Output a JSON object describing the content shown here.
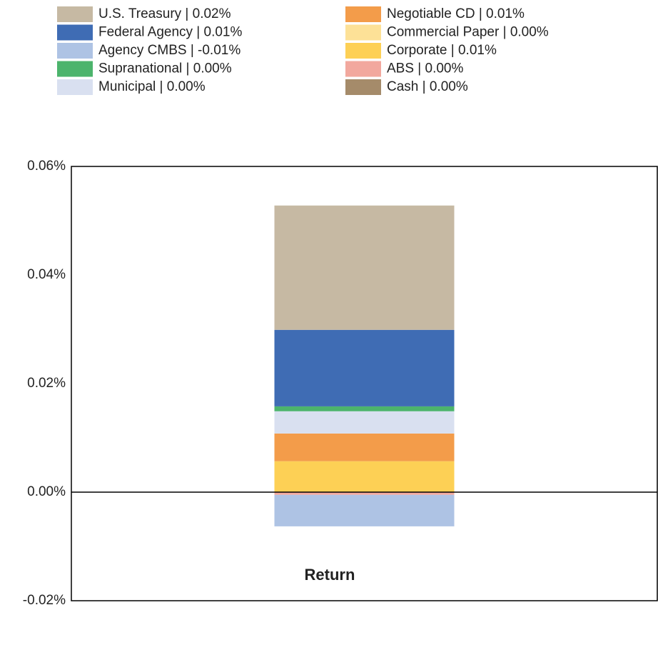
{
  "chart_data": {
    "type": "stacked_bar",
    "categories": [
      "Return"
    ],
    "series": [
      {
        "name": "U.S. Treasury | 0.02%",
        "color": "#c6b9a3",
        "values": [
          0.0229
        ]
      },
      {
        "name": "Federal Agency | 0.01%",
        "color": "#3f6cb4",
        "values": [
          0.0141
        ]
      },
      {
        "name": "Agency CMBS | -0.01%",
        "color": "#aec3e4",
        "values": [
          -0.0058
        ]
      },
      {
        "name": "Supranational | 0.00%",
        "color": "#4cb46c",
        "values": [
          0.0009
        ]
      },
      {
        "name": "Municipal | 0.00%",
        "color": "#d9e0f0",
        "values": [
          0.0041
        ]
      },
      {
        "name": "Negotiable CD | 0.01%",
        "color": "#f39c4a",
        "values": [
          0.0051
        ]
      },
      {
        "name": "Commercial Paper | 0.00%",
        "color": "#fde197",
        "values": [
          0
        ]
      },
      {
        "name": "Corporate | 0.01%",
        "color": "#fdd055",
        "values": [
          0.0057
        ]
      },
      {
        "name": "ABS | 0.00%",
        "color": "#f2a89e",
        "values": [
          -0.0005
        ]
      },
      {
        "name": "Cash | 0.00%",
        "color": "#a58b6a",
        "values": [
          0
        ]
      }
    ],
    "ylim": [
      -0.02,
      0.06
    ],
    "yticks": [
      {
        "value": -0.02,
        "label": "-0.02%"
      },
      {
        "value": 0,
        "label": "0.00%"
      },
      {
        "value": 0.02,
        "label": "0.02%"
      },
      {
        "value": 0.04,
        "label": "0.04%"
      },
      {
        "value": 0.06,
        "label": "0.06%"
      }
    ],
    "grid": false
  }
}
